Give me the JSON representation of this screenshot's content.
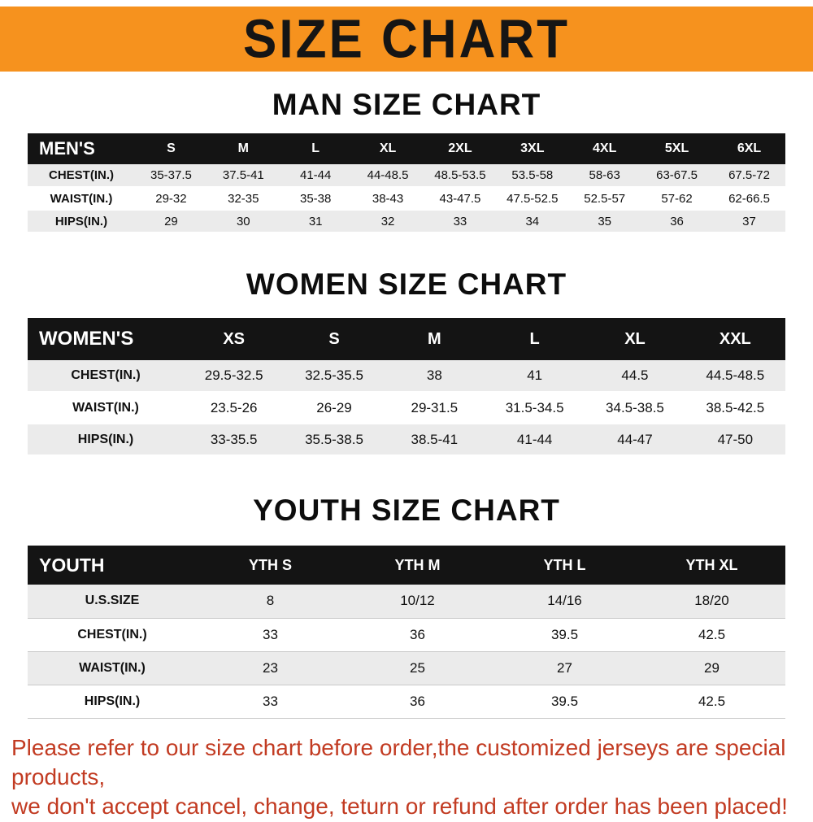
{
  "banner": {
    "title": "SIZE CHART",
    "bg_color": "#F6921E"
  },
  "sections": [
    {
      "heading": "MAN SIZE CHART",
      "table": {
        "label": "MEN'S",
        "columns": [
          "S",
          "M",
          "L",
          "XL",
          "2XL",
          "3XL",
          "4XL",
          "5XL",
          "6XL"
        ],
        "rows": [
          {
            "label": "CHEST(IN.)",
            "values": [
              "35-37.5",
              "37.5-41",
              "41-44",
              "44-48.5",
              "48.5-53.5",
              "53.5-58",
              "58-63",
              "63-67.5",
              "67.5-72"
            ]
          },
          {
            "label": "WAIST(IN.)",
            "values": [
              "29-32",
              "32-35",
              "35-38",
              "38-43",
              "43-47.5",
              "47.5-52.5",
              "52.5-57",
              "57-62",
              "62-66.5"
            ]
          },
          {
            "label": "HIPS(IN.)",
            "values": [
              "29",
              "30",
              "31",
              "32",
              "33",
              "34",
              "35",
              "36",
              "37"
            ]
          }
        ]
      }
    },
    {
      "heading": "WOMEN SIZE CHART",
      "table": {
        "label": "WOMEN'S",
        "columns": [
          "XS",
          "S",
          "M",
          "L",
          "XL",
          "XXL"
        ],
        "rows": [
          {
            "label": "CHEST(IN.)",
            "values": [
              "29.5-32.5",
              "32.5-35.5",
              "38",
              "41",
              "44.5",
              "44.5-48.5"
            ]
          },
          {
            "label": "WAIST(IN.)",
            "values": [
              "23.5-26",
              "26-29",
              "29-31.5",
              "31.5-34.5",
              "34.5-38.5",
              "38.5-42.5"
            ]
          },
          {
            "label": "HIPS(IN.)",
            "values": [
              "33-35.5",
              "35.5-38.5",
              "38.5-41",
              "41-44",
              "44-47",
              "47-50"
            ]
          }
        ]
      }
    },
    {
      "heading": "YOUTH SIZE CHART",
      "table": {
        "label": "YOUTH",
        "columns": [
          "YTH S",
          "YTH M",
          "YTH L",
          "YTH XL"
        ],
        "rows": [
          {
            "label": "U.S.SIZE",
            "values": [
              "8",
              "10/12",
              "14/16",
              "18/20"
            ]
          },
          {
            "label": "CHEST(IN.)",
            "values": [
              "33",
              "36",
              "39.5",
              "42.5"
            ]
          },
          {
            "label": "WAIST(IN.)",
            "values": [
              "23",
              "25",
              "27",
              "29"
            ]
          },
          {
            "label": "HIPS(IN.)",
            "values": [
              "33",
              "36",
              "39.5",
              "42.5"
            ]
          }
        ]
      }
    }
  ],
  "footer": {
    "lines": [
      "Please refer to our size chart before order,the customized jerseys are special products,",
      "we don't accept cancel, change, teturn or refund after order has been placed!"
    ],
    "color": "#C23B22"
  },
  "colors": {
    "table_header_bg": "#141414",
    "row_stripe": "#ebebeb",
    "background": "#ffffff"
  }
}
